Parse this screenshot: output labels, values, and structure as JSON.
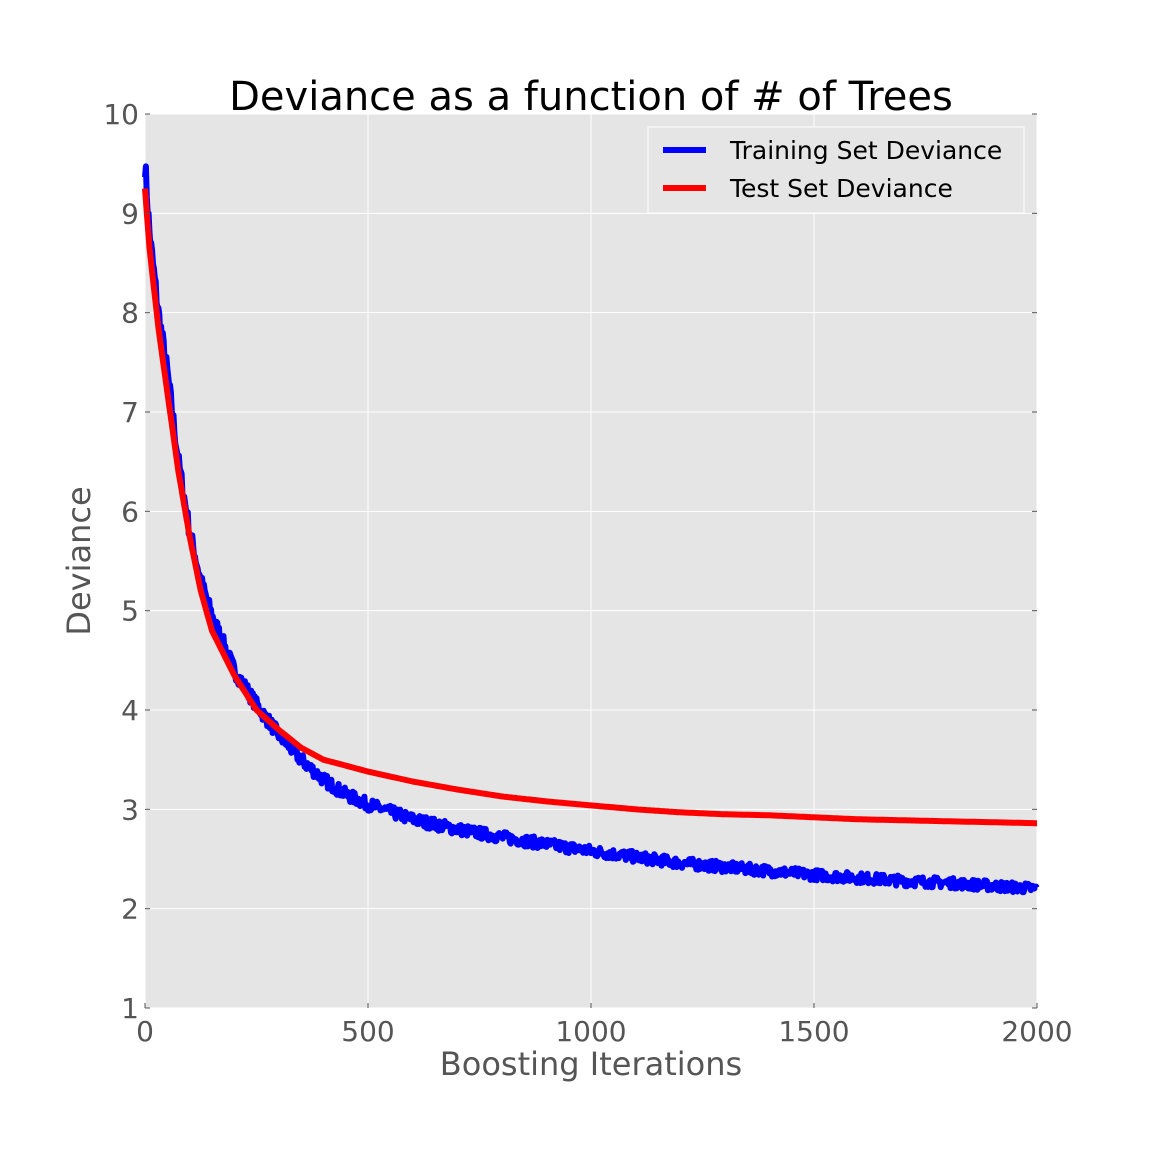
{
  "chart_data": {
    "type": "line",
    "title": "Deviance as a function of # of Trees",
    "xlabel": "Boosting Iterations",
    "ylabel": "Deviance",
    "xlim": [
      0,
      2000
    ],
    "ylim": [
      1,
      10
    ],
    "xticks": [
      "0",
      "500",
      "1000",
      "1500",
      "2000"
    ],
    "yticks": [
      "1",
      "2",
      "3",
      "4",
      "5",
      "6",
      "7",
      "8",
      "9",
      "10"
    ],
    "grid": true,
    "legend_position": "top-right",
    "colors": {
      "plot_background": "#e5e5e5",
      "grid": "#ffffff",
      "training": "#0000ff",
      "test": "#ff0000"
    },
    "series": [
      {
        "name": "Training Set Deviance",
        "color": "#0000ff",
        "noisy": true,
        "x": [
          0,
          10,
          20,
          30,
          50,
          75,
          100,
          125,
          150,
          200,
          250,
          300,
          350,
          400,
          450,
          500,
          600,
          700,
          800,
          900,
          1000,
          1100,
          1200,
          1300,
          1400,
          1500,
          1600,
          1700,
          1800,
          1900,
          2000
        ],
        "values": [
          9.5,
          8.8,
          8.4,
          8.0,
          7.4,
          6.5,
          5.8,
          5.3,
          4.95,
          4.4,
          4.05,
          3.75,
          3.5,
          3.3,
          3.15,
          3.05,
          2.9,
          2.8,
          2.72,
          2.65,
          2.58,
          2.52,
          2.46,
          2.42,
          2.38,
          2.34,
          2.31,
          2.28,
          2.26,
          2.23,
          2.2
        ]
      },
      {
        "name": "Test Set Deviance",
        "color": "#ff0000",
        "noisy": false,
        "x": [
          0,
          10,
          20,
          30,
          50,
          75,
          100,
          125,
          150,
          200,
          250,
          300,
          350,
          400,
          450,
          500,
          600,
          700,
          800,
          900,
          1000,
          1100,
          1200,
          1300,
          1400,
          1500,
          1600,
          1700,
          1800,
          1900,
          2000
        ],
        "values": [
          9.25,
          8.65,
          8.25,
          7.85,
          7.2,
          6.4,
          5.75,
          5.2,
          4.8,
          4.35,
          4.0,
          3.8,
          3.62,
          3.5,
          3.44,
          3.38,
          3.28,
          3.2,
          3.13,
          3.08,
          3.04,
          3.0,
          2.97,
          2.95,
          2.94,
          2.92,
          2.9,
          2.89,
          2.88,
          2.87,
          2.86
        ]
      }
    ]
  }
}
